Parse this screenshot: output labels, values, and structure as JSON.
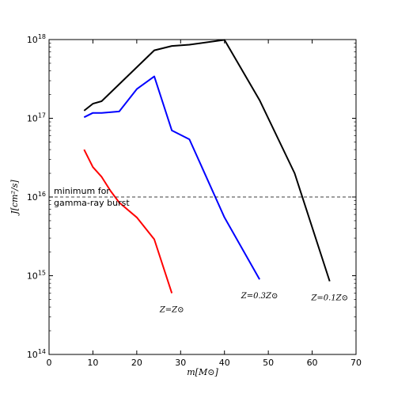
{
  "chart_data": {
    "type": "line",
    "xlabel": "m[M⊙]",
    "ylabel": "J[cm²/s]",
    "xlim": [
      0,
      70
    ],
    "ylim": [
      100000000000000.0,
      1e+18
    ],
    "yscale": "log",
    "x_ticks": [
      0,
      10,
      20,
      30,
      40,
      50,
      60,
      70
    ],
    "y_ticks": [
      {
        "value": 100000000000000.0,
        "mantissa": "10",
        "exp": "14"
      },
      {
        "value": 1000000000000000.0,
        "mantissa": "10",
        "exp": "15"
      },
      {
        "value": 1e+16,
        "mantissa": "10",
        "exp": "16"
      },
      {
        "value": 1e+17,
        "mantissa": "10",
        "exp": "17"
      },
      {
        "value": 1e+18,
        "mantissa": "10",
        "exp": "18"
      }
    ],
    "grid": false,
    "series": [
      {
        "name": "Z=Z⊙",
        "color": "#ff0000",
        "x": [
          8,
          10,
          12,
          14,
          16,
          20,
          24,
          28
        ],
        "y": [
          4e+16,
          2.4e+16,
          1.8e+16,
          1.2e+16,
          8500000000000000.0,
          5500000000000000.0,
          2900000000000000.0,
          600000000000000.0
        ]
      },
      {
        "name": "Z=0.3Z⊙",
        "color": "#0000ff",
        "x": [
          8,
          10,
          12,
          16,
          20,
          24,
          28,
          32,
          40,
          48
        ],
        "y": [
          1.03e+17,
          1.17e+17,
          1.17e+17,
          1.22e+17,
          2.35e+17,
          3.4e+17,
          7e+16,
          5.4e+16,
          5500000000000000.0,
          900000000000000.0
        ]
      },
      {
        "name": "Z=0.1Z⊙",
        "color": "#000000",
        "x": [
          8,
          10,
          12,
          24,
          28,
          32,
          40,
          48,
          56,
          64
        ],
        "y": [
          1.25e+17,
          1.53e+17,
          1.65e+17,
          7.3e+17,
          8.3e+17,
          8.6e+17,
          9.9e+17,
          1.7e+17,
          2e+16,
          850000000000000.0
        ]
      }
    ],
    "reference_line": {
      "y": 1e+16,
      "style": "dashed",
      "color": "#000000"
    },
    "annotation_lines": [
      "minimum for",
      "gamma-ray burst"
    ]
  }
}
